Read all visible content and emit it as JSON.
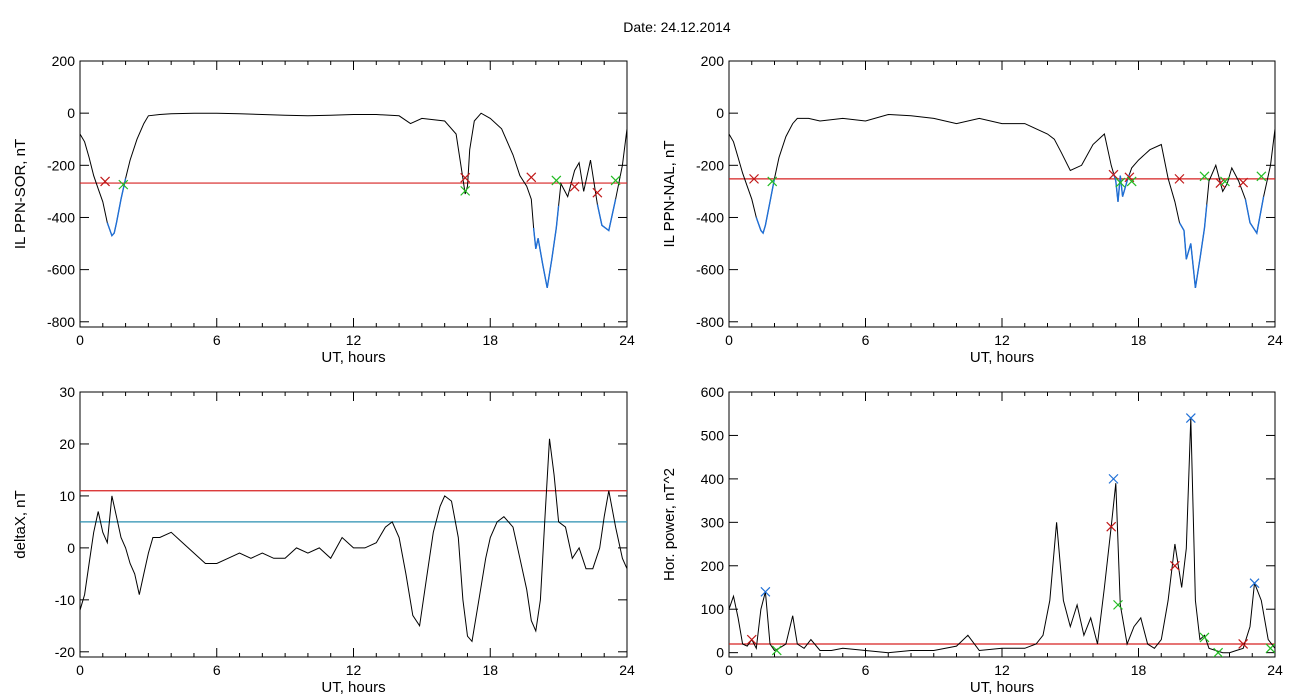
{
  "title": "Date:  24.12.2014",
  "colors": {
    "trace": "#000000",
    "threshold": "#d62020",
    "blue_segment": "#1f6fd6",
    "onset_marker": "#c01818",
    "end_marker": "#22bb22",
    "peak_marker": "#1f6fd6",
    "secondary_threshold": "#2a8fb0"
  },
  "chart_data": [
    {
      "id": "sor",
      "type": "line",
      "xlabel": "UT, hours",
      "ylabel": "IL PPN-SOR, nT",
      "xlim": [
        0,
        24
      ],
      "ylim": [
        -820,
        200
      ],
      "xticks": [
        0,
        6,
        12,
        18,
        24
      ],
      "yticks": [
        -800,
        -600,
        -400,
        -200,
        0,
        200
      ],
      "grid": false,
      "series": [
        {
          "x": [
            0,
            0.2,
            0.4,
            0.6,
            0.8,
            1.0,
            1.2,
            1.4,
            1.5,
            1.6,
            1.8,
            2.0,
            2.2,
            2.5,
            2.8,
            3.0,
            3.5,
            4,
            5,
            6,
            7,
            8,
            9,
            10,
            11,
            12,
            13,
            14,
            14.5,
            15,
            16,
            16.5,
            16.8,
            16.9,
            17.0,
            17.1,
            17.3,
            17.6,
            18.0,
            18.5,
            19.0,
            19.3,
            19.6,
            19.8,
            19.9,
            20.0,
            20.1,
            20.3,
            20.5,
            20.7,
            20.9,
            21.1,
            21.4,
            21.7,
            21.9,
            22.1,
            22.4,
            22.7,
            22.9,
            23.2,
            23.5,
            23.8,
            24
          ],
          "y": [
            -80,
            -110,
            -170,
            -240,
            -290,
            -340,
            -420,
            -470,
            -460,
            -420,
            -330,
            -250,
            -180,
            -100,
            -40,
            -10,
            -5,
            -2,
            0,
            0,
            -2,
            -5,
            -8,
            -10,
            -8,
            -5,
            -5,
            -10,
            -40,
            -20,
            -30,
            -80,
            -250,
            -310,
            -280,
            -140,
            -30,
            0,
            -20,
            -60,
            -160,
            -240,
            -280,
            -330,
            -440,
            -520,
            -480,
            -580,
            -670,
            -560,
            -440,
            -270,
            -320,
            -220,
            -190,
            -300,
            -180,
            -350,
            -430,
            -450,
            -330,
            -200,
            -60
          ]
        }
      ],
      "blue_segments": [
        [
          1.2,
          2.0
        ],
        [
          19.9,
          21.0
        ],
        [
          22.7,
          23.5
        ]
      ],
      "threshold": -268,
      "onset_markers": [
        {
          "x": 1.1,
          "y": -262
        },
        {
          "x": 16.9,
          "y": -248
        },
        {
          "x": 19.8,
          "y": -246
        },
        {
          "x": 21.7,
          "y": -282
        },
        {
          "x": 22.7,
          "y": -305
        }
      ],
      "end_markers": [
        {
          "x": 1.9,
          "y": -274
        },
        {
          "x": 16.9,
          "y": -298
        },
        {
          "x": 20.9,
          "y": -258
        },
        {
          "x": 23.5,
          "y": -258
        }
      ]
    },
    {
      "id": "nal",
      "type": "line",
      "xlabel": "UT, hours",
      "ylabel": "IL PPN-NAL, nT",
      "xlim": [
        0,
        24
      ],
      "ylim": [
        -820,
        200
      ],
      "xticks": [
        0,
        6,
        12,
        18,
        24
      ],
      "yticks": [
        -800,
        -600,
        -400,
        -200,
        0,
        200
      ],
      "grid": false,
      "series": [
        {
          "x": [
            0,
            0.2,
            0.4,
            0.6,
            0.8,
            1.0,
            1.2,
            1.4,
            1.5,
            1.6,
            1.8,
            2.0,
            2.2,
            2.5,
            2.8,
            3.0,
            3.5,
            4,
            5,
            6,
            7,
            8,
            9,
            10,
            11,
            12,
            13,
            13.5,
            14,
            14.3,
            14.6,
            15.0,
            15.5,
            16.0,
            16.5,
            16.8,
            17.0,
            17.1,
            17.2,
            17.3,
            17.5,
            17.7,
            18.0,
            18.5,
            19.0,
            19.3,
            19.6,
            19.8,
            20.0,
            20.1,
            20.3,
            20.5,
            20.7,
            20.9,
            21.1,
            21.4,
            21.7,
            21.9,
            22.1,
            22.4,
            22.7,
            22.9,
            23.2,
            23.5,
            23.8,
            24
          ],
          "y": [
            -80,
            -110,
            -170,
            -230,
            -280,
            -330,
            -400,
            -450,
            -460,
            -430,
            -340,
            -250,
            -170,
            -90,
            -40,
            -20,
            -20,
            -30,
            -20,
            -30,
            -5,
            -10,
            -20,
            -40,
            -20,
            -40,
            -40,
            -60,
            -80,
            -100,
            -150,
            -220,
            -200,
            -120,
            -80,
            -200,
            -260,
            -340,
            -240,
            -320,
            -260,
            -210,
            -180,
            -140,
            -120,
            -250,
            -340,
            -420,
            -450,
            -560,
            -500,
            -670,
            -560,
            -440,
            -260,
            -200,
            -300,
            -270,
            -210,
            -260,
            -330,
            -420,
            -460,
            -320,
            -200,
            -60
          ]
        }
      ],
      "blue_segments": [
        [
          1.2,
          2.0
        ],
        [
          16.9,
          17.6
        ],
        [
          19.8,
          21.0
        ],
        [
          22.7,
          23.5
        ]
      ],
      "threshold": -252,
      "onset_markers": [
        {
          "x": 1.1,
          "y": -252
        },
        {
          "x": 16.9,
          "y": -236
        },
        {
          "x": 17.6,
          "y": -246
        },
        {
          "x": 19.8,
          "y": -252
        },
        {
          "x": 21.6,
          "y": -268
        },
        {
          "x": 22.6,
          "y": -266
        }
      ],
      "end_markers": [
        {
          "x": 1.9,
          "y": -262
        },
        {
          "x": 17.2,
          "y": -266
        },
        {
          "x": 17.7,
          "y": -262
        },
        {
          "x": 20.9,
          "y": -242
        },
        {
          "x": 21.8,
          "y": -262
        },
        {
          "x": 23.4,
          "y": -242
        }
      ]
    },
    {
      "id": "deltax",
      "type": "line",
      "xlabel": "UT, hours",
      "ylabel": "deltaX, nT",
      "xlim": [
        0,
        24
      ],
      "ylim": [
        -21,
        30
      ],
      "xticks": [
        0,
        6,
        12,
        18,
        24
      ],
      "yticks": [
        -20,
        -10,
        0,
        10,
        20,
        30
      ],
      "grid": false,
      "series": [
        {
          "x": [
            0,
            0.2,
            0.4,
            0.6,
            0.8,
            1.0,
            1.2,
            1.4,
            1.6,
            1.8,
            2.0,
            2.2,
            2.4,
            2.6,
            2.8,
            3.0,
            3.2,
            3.5,
            4.0,
            4.5,
            5.0,
            5.5,
            6.0,
            6.5,
            7.0,
            7.5,
            8.0,
            8.5,
            9.0,
            9.5,
            10.0,
            10.5,
            11.0,
            11.5,
            12.0,
            12.5,
            13.0,
            13.4,
            13.7,
            14.0,
            14.3,
            14.6,
            14.9,
            15.2,
            15.5,
            15.8,
            16.0,
            16.3,
            16.6,
            16.8,
            17.0,
            17.2,
            17.5,
            17.8,
            18.0,
            18.3,
            18.6,
            19.0,
            19.3,
            19.6,
            19.8,
            20.0,
            20.2,
            20.4,
            20.6,
            20.8,
            21.0,
            21.3,
            21.6,
            21.9,
            22.2,
            22.5,
            22.8,
            23.0,
            23.2,
            23.5,
            23.8,
            24
          ],
          "y": [
            -12,
            -9,
            -3,
            3,
            7,
            3,
            1,
            10,
            6,
            2,
            0,
            -3,
            -5,
            -9,
            -5,
            -1,
            2,
            2,
            3,
            1,
            -1,
            -3,
            -3,
            -2,
            -1,
            -2,
            -1,
            -2,
            -2,
            0,
            -1,
            0,
            -2,
            2,
            0,
            0,
            1,
            4,
            5,
            2,
            -5,
            -13,
            -15,
            -6,
            3,
            8,
            10,
            9,
            2,
            -10,
            -17,
            -18,
            -10,
            -2,
            2,
            5,
            6,
            4,
            -2,
            -8,
            -14,
            -16,
            -10,
            6,
            21,
            14,
            5,
            4,
            -2,
            0,
            -4,
            -4,
            0,
            6,
            11,
            4,
            -2,
            -4
          ]
        }
      ],
      "hlines": [
        {
          "y": 11,
          "role": "threshold"
        },
        {
          "y": 5,
          "role": "secondary_threshold"
        }
      ]
    },
    {
      "id": "power",
      "type": "line",
      "xlabel": "UT, hours",
      "ylabel": "Hor. power, nT^2",
      "xlim": [
        0,
        24
      ],
      "ylim": [
        -10,
        600
      ],
      "xticks": [
        0,
        6,
        12,
        18,
        24
      ],
      "yticks": [
        0,
        100,
        200,
        300,
        400,
        500,
        600
      ],
      "grid": false,
      "series": [
        {
          "x": [
            0,
            0.2,
            0.4,
            0.6,
            0.8,
            1.0,
            1.2,
            1.4,
            1.6,
            1.8,
            2.0,
            2.2,
            2.5,
            2.8,
            3.0,
            3.3,
            3.6,
            4.0,
            4.5,
            5.0,
            6.0,
            7.0,
            8.0,
            9.0,
            10.0,
            10.5,
            11.0,
            12.0,
            13.0,
            13.5,
            13.8,
            14.1,
            14.4,
            14.7,
            15.0,
            15.3,
            15.6,
            15.9,
            16.2,
            16.5,
            16.8,
            17.0,
            17.2,
            17.5,
            17.8,
            18.1,
            18.4,
            18.7,
            19.0,
            19.3,
            19.6,
            19.9,
            20.1,
            20.3,
            20.5,
            20.7,
            20.9,
            21.1,
            21.4,
            21.7,
            22.0,
            22.3,
            22.6,
            22.9,
            23.1,
            23.4,
            23.7,
            24
          ],
          "y": [
            100,
            130,
            80,
            20,
            15,
            30,
            10,
            100,
            140,
            20,
            5,
            10,
            20,
            85,
            20,
            10,
            30,
            5,
            5,
            10,
            5,
            0,
            5,
            5,
            15,
            40,
            5,
            10,
            10,
            20,
            40,
            120,
            300,
            120,
            60,
            110,
            40,
            80,
            20,
            150,
            290,
            390,
            110,
            20,
            60,
            80,
            20,
            10,
            30,
            120,
            250,
            150,
            240,
            540,
            120,
            30,
            40,
            10,
            5,
            0,
            0,
            5,
            10,
            60,
            160,
            120,
            30,
            10
          ]
        }
      ],
      "threshold": 20,
      "peak_markers": [
        {
          "x": 1.6,
          "y": 140
        },
        {
          "x": 16.9,
          "y": 400
        },
        {
          "x": 20.3,
          "y": 540
        },
        {
          "x": 23.1,
          "y": 160
        }
      ],
      "onset_markers": [
        {
          "x": 1.0,
          "y": 30
        },
        {
          "x": 16.8,
          "y": 290
        },
        {
          "x": 19.6,
          "y": 200
        },
        {
          "x": 22.6,
          "y": 20
        }
      ],
      "end_markers": [
        {
          "x": 2.1,
          "y": 5
        },
        {
          "x": 17.1,
          "y": 110
        },
        {
          "x": 20.9,
          "y": 35
        },
        {
          "x": 21.5,
          "y": 0
        },
        {
          "x": 23.8,
          "y": 10
        }
      ]
    }
  ]
}
